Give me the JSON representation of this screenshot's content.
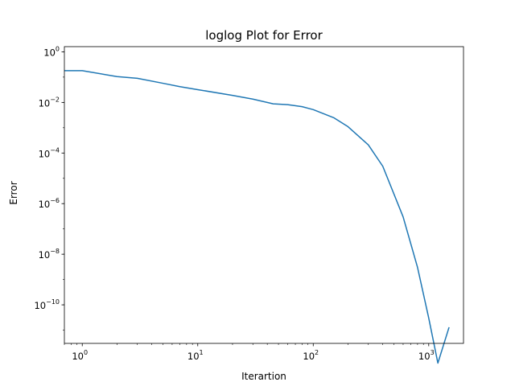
{
  "chart_data": {
    "type": "line",
    "title": "loglog Plot for Error",
    "xlabel": "Iterartion",
    "ylabel": "Error",
    "xscale": "log",
    "yscale": "log",
    "xlim": [
      0.7,
      2000
    ],
    "ylim": [
      3e-12,
      1.6
    ],
    "grid": false,
    "legend": "none",
    "x_ticks": [
      {
        "base": "10",
        "exp": "0",
        "value": 1
      },
      {
        "base": "10",
        "exp": "1",
        "value": 10
      },
      {
        "base": "10",
        "exp": "2",
        "value": 100
      },
      {
        "base": "10",
        "exp": "3",
        "value": 1000
      }
    ],
    "y_ticks": [
      {
        "base": "10",
        "exp": "0",
        "value": 1
      },
      {
        "base": "10",
        "exp": "−2",
        "value": 0.01
      },
      {
        "base": "10",
        "exp": "−4",
        "value": 0.0001
      },
      {
        "base": "10",
        "exp": "−6",
        "value": 1e-06
      },
      {
        "base": "10",
        "exp": "−8",
        "value": 1e-08
      },
      {
        "base": "10",
        "exp": "−10",
        "value": 1e-10
      }
    ],
    "series": [
      {
        "color": "#1f77b4",
        "x": [
          0.7,
          1,
          2,
          3,
          5,
          7,
          10,
          20,
          30,
          45,
          60,
          80,
          100,
          150,
          200,
          300,
          400,
          600,
          800,
          1000,
          1200,
          1500
        ],
        "y": [
          0.18,
          0.18,
          0.105,
          0.09,
          0.057,
          0.042,
          0.032,
          0.019,
          0.0135,
          0.0088,
          0.0082,
          0.0068,
          0.0052,
          0.0025,
          0.0011,
          0.00021,
          3e-05,
          3e-07,
          3e-09,
          3e-11,
          5e-13,
          1.3e-11
        ]
      }
    ]
  }
}
